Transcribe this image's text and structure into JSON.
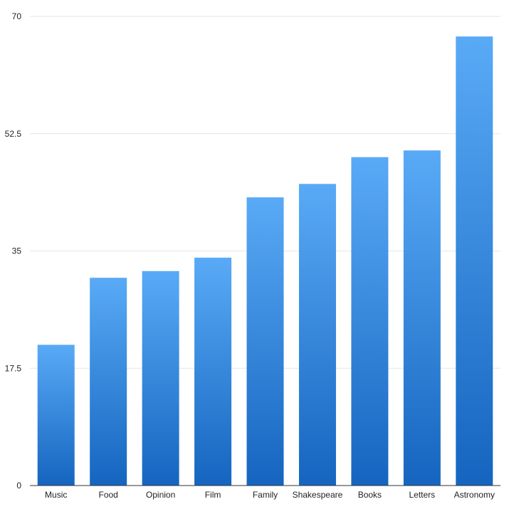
{
  "chart_data": {
    "type": "bar",
    "categories": [
      "Music",
      "Food",
      "Opinion",
      "Film",
      "Family",
      "Shakespeare",
      "Books",
      "Letters",
      "Astronomy"
    ],
    "values": [
      21,
      31,
      32,
      34,
      43,
      45,
      49,
      50,
      67
    ],
    "title": "",
    "xlabel": "",
    "ylabel": "",
    "ylim": [
      0,
      70
    ],
    "yticks": [
      "0",
      "17.5",
      "35",
      "52.5",
      "70"
    ],
    "grid": true,
    "legend": "none",
    "colors": {
      "bar_top": "#59aaf6",
      "bar_bottom": "#1565c0",
      "grid": "#e6e6e6",
      "axis": "#333333"
    }
  }
}
